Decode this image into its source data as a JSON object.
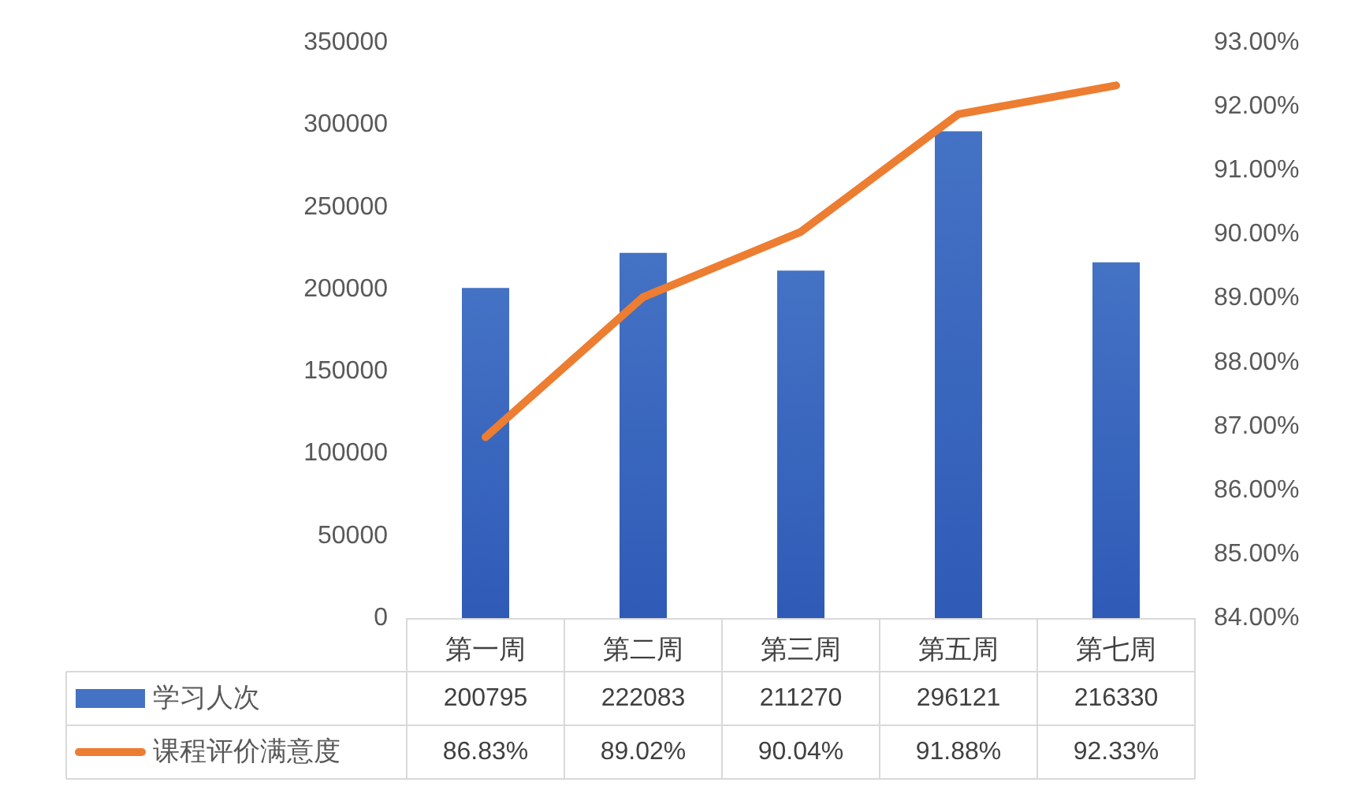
{
  "chart_data": {
    "type": "bar",
    "categories": [
      "第一周",
      "第二周",
      "第三周",
      "第五周",
      "第七周"
    ],
    "series": [
      {
        "name": "学习人次",
        "color": "#4472c4",
        "values": [
          200795,
          222083,
          211270,
          296121,
          216330
        ],
        "value_labels": [
          "200795",
          "222083",
          "211270",
          "296121",
          "216330"
        ]
      },
      {
        "name": "课程评价满意度",
        "type": "line",
        "axis": "y2",
        "color": "#ed7d31",
        "values": [
          86.83,
          89.02,
          90.04,
          91.88,
          92.33
        ],
        "value_labels": [
          "86.83%",
          "89.02%",
          "90.04%",
          "91.88%",
          "92.33%"
        ]
      }
    ],
    "ylim": [
      0,
      350000
    ],
    "yticks": [
      0,
      50000,
      100000,
      150000,
      200000,
      250000,
      300000,
      350000
    ],
    "y2lim": [
      84,
      93
    ],
    "y2ticks": [
      {
        "value": 84,
        "label": "84.00%"
      },
      {
        "value": 85,
        "label": "85.00%"
      },
      {
        "value": 86,
        "label": "86.00%"
      },
      {
        "value": 87,
        "label": "87.00%"
      },
      {
        "value": 88,
        "label": "88.00%"
      },
      {
        "value": 89,
        "label": "89.00%"
      },
      {
        "value": 90,
        "label": "90.00%"
      },
      {
        "value": 91,
        "label": "91.00%"
      },
      {
        "value": 92,
        "label": "92.00%"
      },
      {
        "value": 93,
        "label": "93.00%"
      }
    ],
    "grid": false,
    "legend": "bottom left",
    "marker": "none",
    "line_style": "solid"
  }
}
